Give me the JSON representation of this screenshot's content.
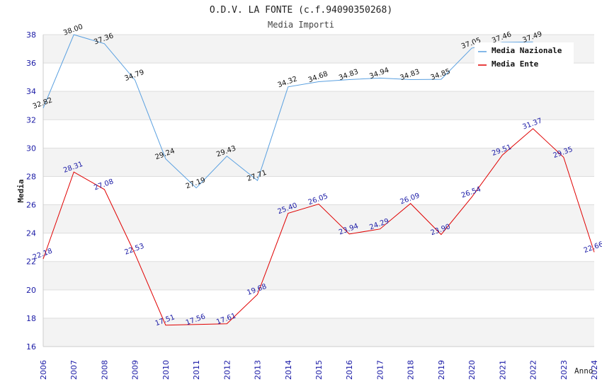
{
  "chart_data": {
    "type": "line",
    "title": "O.D.V. LA FONTE (c.f.94090350268)",
    "subtitle": "Media Importi",
    "ylabel": "Media",
    "xlabel": "Anno",
    "ylim": [
      16,
      38
    ],
    "yticks": [
      16,
      18,
      20,
      22,
      24,
      26,
      28,
      30,
      32,
      34,
      36,
      38
    ],
    "grid": true,
    "legend_position": "top-right",
    "x": [
      "2006",
      "2007",
      "2008",
      "2009",
      "2010",
      "2011",
      "2012",
      "2013",
      "2014",
      "2015",
      "2016",
      "2017",
      "2018",
      "2019",
      "2020",
      "2021",
      "2022",
      "2023",
      "2024"
    ],
    "series": [
      {
        "name": "Media Nazionale",
        "color": "#5aa0e0",
        "label_color": "#111111",
        "values": [
          32.82,
          38.0,
          37.36,
          34.79,
          29.24,
          27.19,
          29.43,
          27.71,
          34.32,
          34.68,
          34.83,
          34.94,
          34.83,
          34.85,
          37.05,
          37.46,
          37.49,
          null,
          null
        ],
        "labels": [
          "32.82",
          "38.00",
          "37.36",
          "34.79",
          "29.24",
          "27.19",
          "29.43",
          "27.71",
          "34.32",
          "34.68",
          "34.83",
          "34.94",
          "34.83",
          "34.85",
          "37.05",
          "37.46",
          "37.49",
          "",
          ""
        ]
      },
      {
        "name": "Media Ente",
        "color": "#e00000",
        "label_color": "#1a1aa6",
        "values": [
          22.18,
          28.31,
          27.08,
          22.53,
          17.51,
          17.56,
          17.61,
          19.68,
          25.4,
          26.05,
          23.94,
          24.29,
          26.09,
          23.9,
          26.54,
          29.51,
          31.37,
          29.35,
          22.66
        ],
        "labels": [
          "22.18",
          "28.31",
          "27.08",
          "22.53",
          "17.51",
          "17.56",
          "17.61",
          "19.68",
          "25.40",
          "26.05",
          "23.94",
          "24.29",
          "26.09",
          "23.90",
          "26.54",
          "29.51",
          "31.37",
          "29.35",
          "22.66"
        ]
      }
    ]
  }
}
